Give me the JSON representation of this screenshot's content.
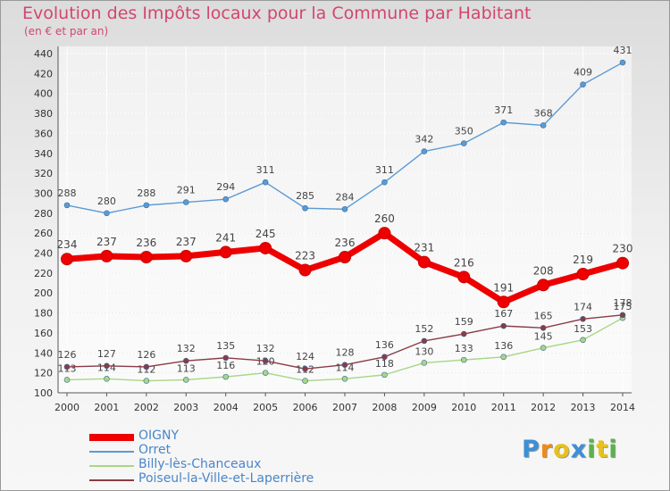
{
  "title": "Evolution des Impôts locaux pour la Commune par Habitant",
  "subtitle": "(en € et par an)",
  "brand": {
    "letters": [
      "P",
      "r",
      "o",
      "x",
      "i",
      "t",
      "i"
    ],
    "colors": [
      "#3d8fd6",
      "#f08a1c",
      "#e8c21a",
      "#3d8fd6",
      "#5ab34a",
      "#e8c21a",
      "#5ab34a"
    ]
  },
  "chart_data": {
    "type": "line",
    "x": [
      2000,
      2001,
      2002,
      2003,
      2004,
      2005,
      2006,
      2007,
      2008,
      2009,
      2010,
      2011,
      2012,
      2013,
      2014
    ],
    "yticks": [
      100,
      120,
      140,
      160,
      180,
      200,
      220,
      240,
      260,
      280,
      300,
      320,
      340,
      360,
      380,
      400,
      420,
      440
    ],
    "ylim": [
      100,
      440
    ],
    "grid": true,
    "legend_position": "bottom-left",
    "series": [
      {
        "name": "Orret",
        "color": "#5b9bd5",
        "values": [
          288,
          280,
          288,
          291,
          294,
          311,
          285,
          284,
          311,
          342,
          350,
          371,
          368,
          409,
          431
        ]
      },
      {
        "name": "Billy-lès-Chanceaux",
        "color": "#a6d785",
        "values": [
          113,
          114,
          112,
          113,
          116,
          120,
          112,
          114,
          118,
          130,
          133,
          136,
          145,
          153,
          175
        ]
      },
      {
        "name": "Poiseul-la-Ville-et-Laperrière",
        "color": "#8b3a45",
        "values": [
          126,
          127,
          126,
          132,
          135,
          132,
          124,
          128,
          136,
          152,
          159,
          167,
          165,
          174,
          178
        ]
      },
      {
        "name": "OIGNY",
        "color": "#ee0000",
        "values": [
          234,
          237,
          236,
          237,
          241,
          245,
          223,
          236,
          260,
          231,
          216,
          191,
          208,
          219,
          230
        ]
      }
    ],
    "legend_order": [
      "OIGNY",
      "Orret",
      "Billy-lès-Chanceaux",
      "Poiseul-la-Ville-et-Laperrière"
    ]
  }
}
